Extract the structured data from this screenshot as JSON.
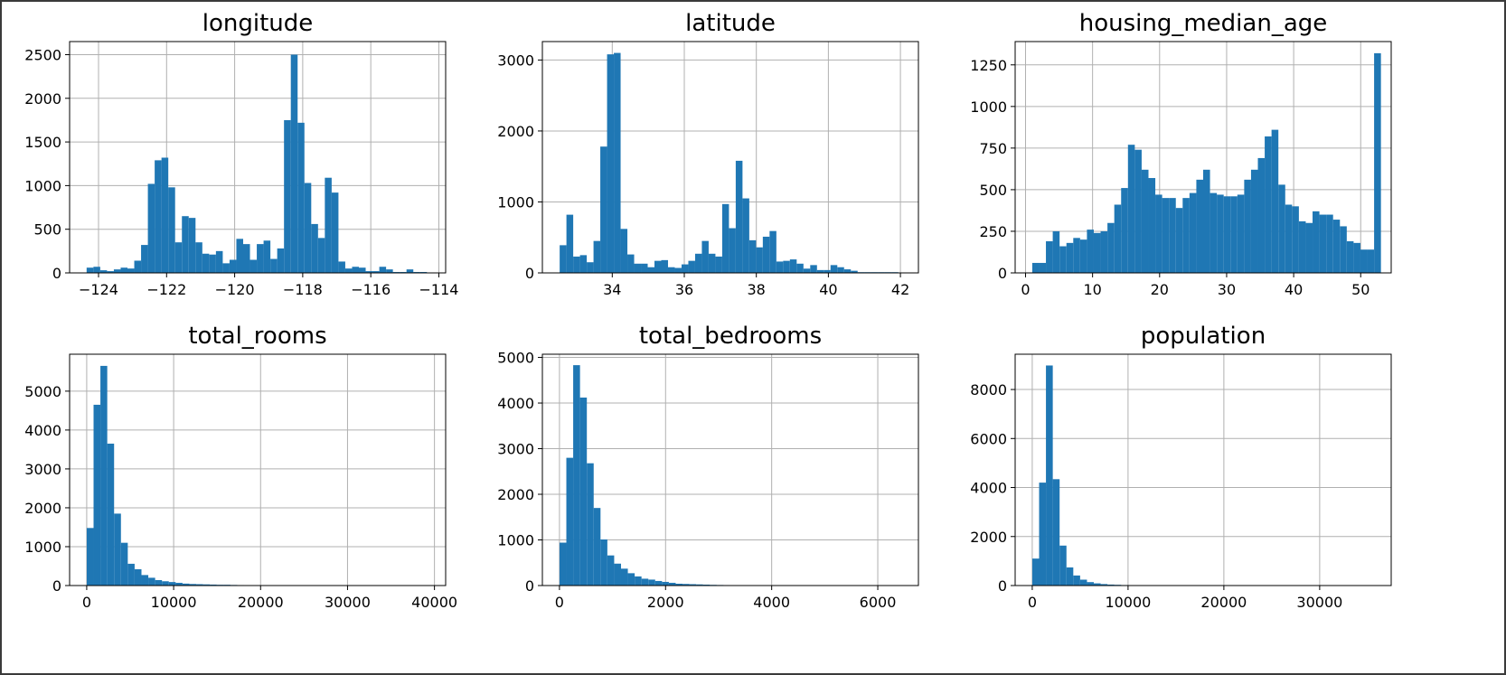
{
  "chart_data": [
    {
      "type": "bar",
      "title": "longitude",
      "xlim": [
        -124.85,
        -113.8
      ],
      "ylim": [
        0,
        2650
      ],
      "xticks": [
        -124,
        -122,
        -120,
        -118,
        -116,
        -114
      ],
      "xtick_labels": [
        "−124",
        "−122",
        "−120",
        "−118",
        "−116",
        "−114"
      ],
      "yticks": [
        0,
        500,
        1000,
        1500,
        2000,
        2500
      ],
      "grid": true,
      "color": "#1f77b4",
      "bin_start": -124.35,
      "bin_width": 0.2,
      "values": [
        60,
        70,
        30,
        20,
        40,
        60,
        50,
        140,
        320,
        1020,
        1290,
        1320,
        980,
        350,
        650,
        630,
        350,
        220,
        210,
        250,
        110,
        150,
        390,
        330,
        150,
        330,
        370,
        160,
        280,
        1750,
        2500,
        1720,
        1030,
        560,
        400,
        1090,
        920,
        130,
        50,
        70,
        60,
        20,
        20,
        70,
        40,
        10,
        10,
        40,
        10,
        10
      ]
    },
    {
      "type": "bar",
      "title": "latitude",
      "xlim": [
        32.06,
        42.5
      ],
      "ylim": [
        0,
        3260
      ],
      "xticks": [
        34,
        36,
        38,
        40,
        42
      ],
      "xtick_labels": [
        "34",
        "36",
        "38",
        "40",
        "42"
      ],
      "yticks": [
        0,
        1000,
        2000,
        3000
      ],
      "grid": true,
      "color": "#1f77b4",
      "bin_start": 32.54,
      "bin_width": 0.188,
      "values": [
        390,
        820,
        230,
        250,
        150,
        450,
        1780,
        3080,
        3100,
        620,
        260,
        130,
        130,
        80,
        170,
        180,
        80,
        70,
        120,
        170,
        270,
        450,
        270,
        230,
        970,
        630,
        1580,
        1050,
        460,
        360,
        510,
        590,
        160,
        170,
        190,
        130,
        60,
        110,
        40,
        40,
        110,
        80,
        50,
        30,
        10,
        10,
        10,
        10,
        10,
        10
      ]
    },
    {
      "type": "bar",
      "title": "housing_median_age",
      "xlim": [
        -1.55,
        54.55
      ],
      "ylim": [
        0,
        1390
      ],
      "xticks": [
        0,
        10,
        20,
        30,
        40,
        50
      ],
      "xtick_labels": [
        "0",
        "10",
        "20",
        "30",
        "40",
        "50"
      ],
      "yticks": [
        0,
        250,
        500,
        750,
        1000,
        1250
      ],
      "grid": true,
      "color": "#1f77b4",
      "bin_start": 1,
      "bin_width": 1.02,
      "values": [
        60,
        60,
        190,
        250,
        160,
        180,
        210,
        200,
        260,
        240,
        250,
        300,
        410,
        510,
        770,
        740,
        620,
        570,
        470,
        450,
        450,
        390,
        450,
        480,
        560,
        620,
        480,
        470,
        460,
        460,
        470,
        560,
        620,
        690,
        820,
        860,
        530,
        410,
        400,
        310,
        300,
        370,
        350,
        350,
        320,
        280,
        190,
        180,
        140,
        140,
        1320
      ]
    },
    {
      "type": "bar",
      "title": "total_rooms",
      "xlim": [
        -1967,
        41287
      ],
      "ylim": [
        0,
        5950
      ],
      "xticks": [
        0,
        10000,
        20000,
        30000,
        40000
      ],
      "xtick_labels": [
        "0",
        "10000",
        "20000",
        "30000",
        "40000"
      ],
      "yticks": [
        0,
        1000,
        2000,
        3000,
        4000,
        5000
      ],
      "grid": true,
      "color": "#1f77b4",
      "bin_start": 2,
      "bin_width": 787,
      "values": [
        1480,
        4650,
        5650,
        3650,
        1850,
        1100,
        560,
        420,
        270,
        200,
        140,
        110,
        90,
        70,
        50,
        40,
        35,
        30,
        25,
        20,
        20,
        15,
        12,
        10,
        10,
        8,
        6,
        5,
        5,
        4,
        3,
        3,
        2,
        2,
        2,
        1,
        1,
        1,
        1,
        1,
        0,
        0,
        0,
        0,
        0,
        0,
        0,
        0,
        0,
        1
      ]
    },
    {
      "type": "bar",
      "title": "total_bedrooms",
      "xlim": [
        -322,
        6766
      ],
      "ylim": [
        0,
        5070
      ],
      "xticks": [
        0,
        2000,
        4000,
        6000
      ],
      "xtick_labels": [
        "0",
        "2000",
        "4000",
        "6000"
      ],
      "yticks": [
        0,
        1000,
        2000,
        3000,
        4000,
        5000
      ],
      "grid": true,
      "color": "#1f77b4",
      "bin_start": 1,
      "bin_width": 128.8,
      "values": [
        940,
        2800,
        4830,
        4120,
        2680,
        1700,
        1010,
        660,
        480,
        370,
        270,
        200,
        150,
        130,
        100,
        80,
        60,
        40,
        35,
        30,
        25,
        20,
        15,
        12,
        10,
        8,
        6,
        6,
        4,
        4,
        3,
        3,
        2,
        2,
        2,
        1,
        1,
        1,
        1,
        1,
        0,
        0,
        0,
        0,
        0,
        0,
        0,
        0,
        0,
        1
      ]
    },
    {
      "type": "bar",
      "title": "population",
      "xlim": [
        -1784,
        37465
      ],
      "ylim": [
        0,
        9440
      ],
      "xticks": [
        0,
        10000,
        20000,
        30000
      ],
      "xtick_labels": [
        "0",
        "10000",
        "20000",
        "30000"
      ],
      "yticks": [
        0,
        2000,
        4000,
        6000,
        8000
      ],
      "grid": true,
      "color": "#1f77b4",
      "bin_start": 3,
      "bin_width": 713.6,
      "values": [
        1100,
        4200,
        8980,
        4340,
        1630,
        740,
        410,
        240,
        140,
        90,
        60,
        40,
        30,
        20,
        15,
        12,
        10,
        8,
        6,
        5,
        4,
        3,
        3,
        2,
        2,
        2,
        1,
        1,
        1,
        1,
        1,
        1,
        0,
        0,
        0,
        0,
        0,
        0,
        0,
        0,
        0,
        0,
        0,
        0,
        0,
        0,
        0,
        0,
        0,
        1
      ]
    }
  ]
}
